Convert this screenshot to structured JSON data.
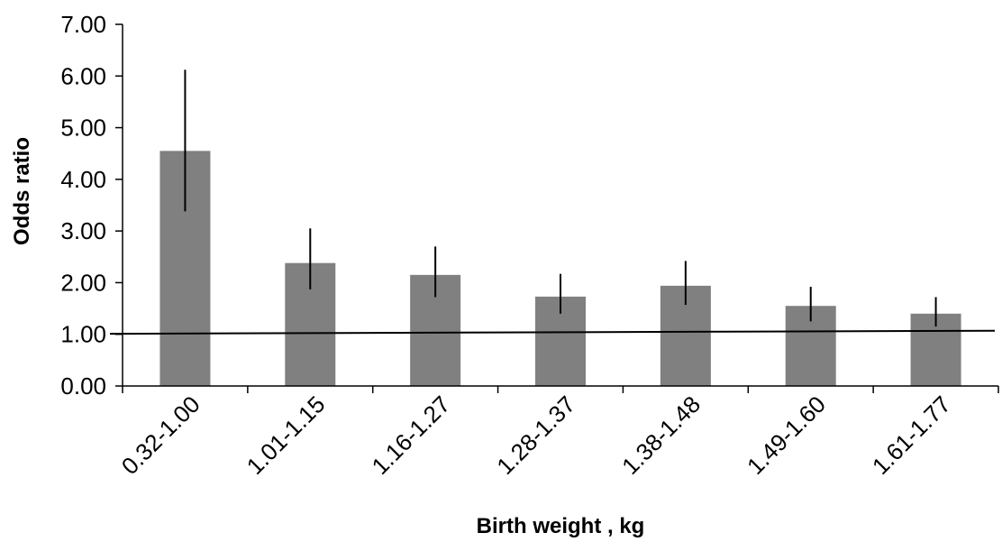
{
  "chart_data": {
    "type": "bar",
    "title": "",
    "xlabel": "Birth weight , kg",
    "ylabel": "Odds ratio",
    "ylim": [
      0,
      7
    ],
    "yticks": [
      "0.00",
      "1.00",
      "2.00",
      "3.00",
      "4.00",
      "5.00",
      "6.00",
      "7.00"
    ],
    "categories": [
      "0.32-1.00",
      "1.01-1.15",
      "1.16-1.27",
      "1.28-1.37",
      "1.38-1.48",
      "1.49-1.60",
      "1.61-1.77"
    ],
    "values": [
      4.55,
      2.38,
      2.15,
      1.73,
      1.94,
      1.55,
      1.4
    ],
    "error_low": [
      3.38,
      1.87,
      1.72,
      1.4,
      1.57,
      1.25,
      1.15
    ],
    "error_high": [
      6.12,
      3.05,
      2.7,
      2.17,
      2.42,
      1.92,
      1.72
    ],
    "reference_line": [
      1.01,
      1.07
    ],
    "grid": false,
    "legend": "none",
    "bar_color": "#808080",
    "line_color": "#000000"
  }
}
